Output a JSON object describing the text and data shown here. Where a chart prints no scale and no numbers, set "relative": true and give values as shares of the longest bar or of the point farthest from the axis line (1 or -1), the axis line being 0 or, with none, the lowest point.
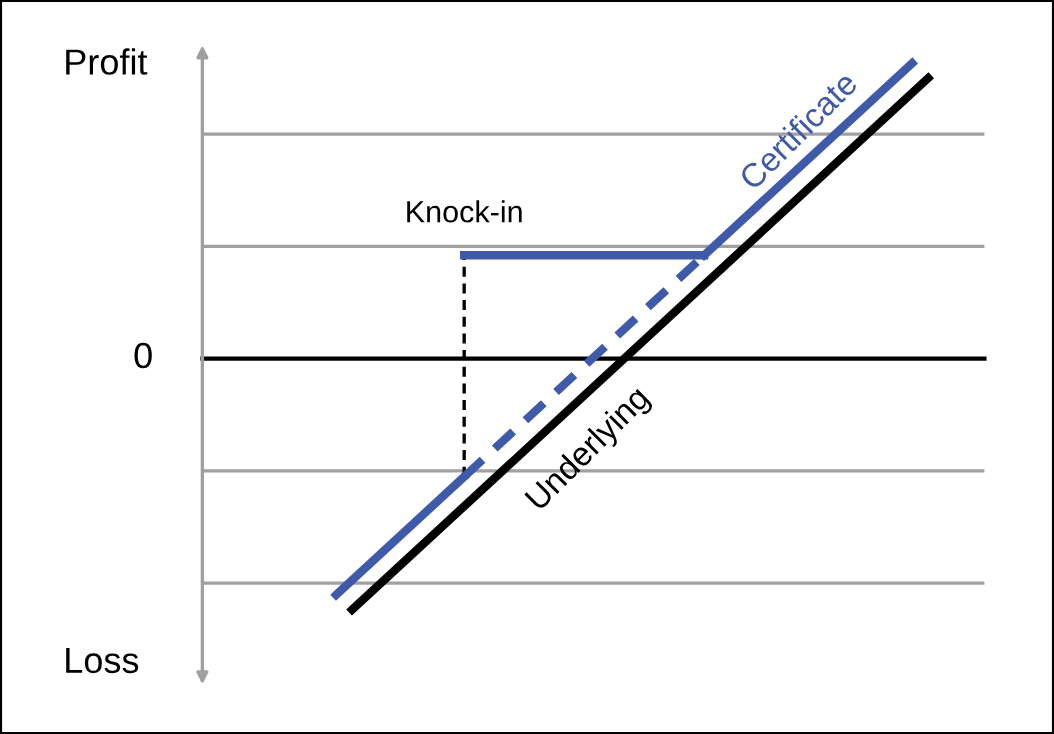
{
  "chart_data": {
    "type": "line",
    "relative": true,
    "categories": [
      null,
      null,
      null,
      null,
      null,
      null,
      null,
      null,
      null,
      null,
      null,
      null,
      null,
      null,
      null,
      null,
      null,
      null,
      null,
      null,
      null,
      null,
      null,
      null,
      null,
      null,
      null,
      null,
      null,
      null,
      null,
      null,
      null,
      null,
      null,
      null,
      null,
      null
    ],
    "series": [
      {
        "name": "Underlying",
        "color": "#000000",
        "line_style": "solid",
        "values": [
          null,
          -0.85,
          null,
          null,
          null,
          null,
          null,
          null,
          null,
          null,
          null,
          null,
          null,
          null,
          null,
          null,
          null,
          null,
          null,
          null,
          null,
          null,
          null,
          null,
          null,
          null,
          null,
          null,
          null,
          null,
          null,
          null,
          null,
          null,
          null,
          null,
          null,
          0.95
        ]
      },
      {
        "color": "#3f5aa8",
        "line_style": "solid",
        "values": [
          -0.8,
          null,
          null,
          null,
          null,
          null,
          null,
          null,
          -0.4,
          null,
          null,
          null,
          null,
          null,
          null,
          null,
          null,
          null,
          null,
          null,
          null,
          null,
          null,
          null,
          null,
          null,
          null,
          null,
          null,
          null,
          null,
          null,
          null,
          null,
          null,
          null,
          null,
          null
        ]
      },
      {
        "color": "#3f5aa8",
        "line_style": "dashed",
        "values": [
          null,
          null,
          null,
          null,
          null,
          null,
          null,
          null,
          -0.4,
          null,
          null,
          null,
          null,
          null,
          null,
          null,
          null,
          null,
          null,
          null,
          null,
          null,
          null,
          0.35,
          null,
          null,
          null,
          null,
          null,
          null,
          null,
          null,
          null,
          null,
          null,
          null,
          null,
          null
        ]
      },
      {
        "color": "#3f5aa8",
        "line_style": "solid",
        "values": [
          null,
          null,
          null,
          null,
          null,
          null,
          null,
          null,
          0.35,
          null,
          null,
          null,
          null,
          null,
          null,
          null,
          null,
          null,
          null,
          null,
          null,
          null,
          null,
          0.35,
          null,
          null,
          null,
          null,
          null,
          null,
          null,
          null,
          null,
          null,
          null,
          null,
          null,
          null
        ]
      },
      {
        "name": "Certificate",
        "color": "#3f5aa8",
        "line_style": "solid",
        "values": [
          null,
          null,
          null,
          null,
          null,
          null,
          null,
          null,
          null,
          null,
          null,
          null,
          null,
          null,
          null,
          null,
          null,
          null,
          null,
          null,
          null,
          null,
          null,
          0.35,
          null,
          null,
          null,
          null,
          null,
          null,
          null,
          null,
          null,
          null,
          null,
          null,
          1.0,
          null
        ]
      }
    ],
    "ref_lines": [
      {
        "axis": "y",
        "value": 0.76,
        "color": "#a0a0a0"
      },
      {
        "axis": "y",
        "value": 0.38,
        "color": "#a0a0a0"
      },
      {
        "axis": "y",
        "value": -0.38,
        "color": "#a0a0a0"
      },
      {
        "axis": "y",
        "value": -0.76,
        "color": "#a0a0a0"
      }
    ],
    "annotations": [
      "Profit",
      "0",
      "Loss",
      "Knock-in"
    ]
  }
}
